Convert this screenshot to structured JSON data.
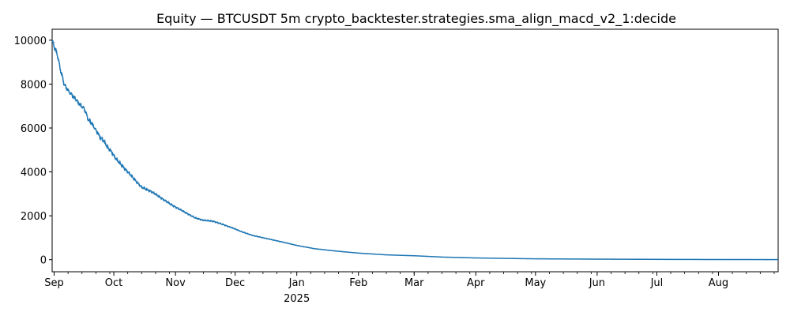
{
  "chart_data": {
    "type": "line",
    "title": "Equity — BTCUSDT 5m crypto_backtester.strategies.sma_align_macd_v2_1:decide",
    "xlabel": "",
    "ylabel": "",
    "x_range": [
      "2024-08-31",
      "2025-08-31"
    ],
    "ylim": [
      -550,
      10500
    ],
    "y_ticks": [
      0,
      2000,
      4000,
      6000,
      8000,
      10000
    ],
    "x_ticks": [
      {
        "date": "2024-09-01",
        "label": "Sep"
      },
      {
        "date": "2024-10-01",
        "label": "Oct"
      },
      {
        "date": "2024-11-01",
        "label": "Nov"
      },
      {
        "date": "2024-12-01",
        "label": "Dec"
      },
      {
        "date": "2025-01-01",
        "label": "Jan",
        "sublabel": "2025"
      },
      {
        "date": "2025-02-01",
        "label": "Feb"
      },
      {
        "date": "2025-03-01",
        "label": "Mar"
      },
      {
        "date": "2025-04-01",
        "label": "Apr"
      },
      {
        "date": "2025-05-01",
        "label": "May"
      },
      {
        "date": "2025-06-01",
        "label": "Jun"
      },
      {
        "date": "2025-07-01",
        "label": "Jul"
      },
      {
        "date": "2025-08-01",
        "label": "Aug"
      }
    ],
    "grid": false,
    "legend": "none",
    "line_color": "#1f77b4",
    "series": [
      {
        "x": [
          "2024-08-31",
          "2024-09-01",
          "2024-09-02",
          "2024-09-03",
          "2024-09-04",
          "2024-09-05",
          "2024-09-06",
          "2024-09-08",
          "2024-09-10",
          "2024-09-12",
          "2024-09-14",
          "2024-09-16",
          "2024-09-17",
          "2024-09-18",
          "2024-09-20",
          "2024-09-22",
          "2024-09-24",
          "2024-09-26",
          "2024-09-28",
          "2024-09-30",
          "2024-10-02",
          "2024-10-05",
          "2024-10-08",
          "2024-10-11",
          "2024-10-15",
          "2024-10-20",
          "2024-10-25",
          "2024-10-30",
          "2024-11-03",
          "2024-11-07",
          "2024-11-11",
          "2024-11-15",
          "2024-11-20",
          "2024-11-25",
          "2024-12-01",
          "2024-12-05",
          "2024-12-10",
          "2024-12-15",
          "2024-12-20",
          "2024-12-25",
          "2025-01-01",
          "2025-01-10",
          "2025-01-20",
          "2025-02-01",
          "2025-02-15",
          "2025-03-01",
          "2025-03-15",
          "2025-04-01",
          "2025-04-15",
          "2025-05-01",
          "2025-06-01",
          "2025-07-01",
          "2025-08-01",
          "2025-08-31"
        ],
        "y": [
          10000,
          9700,
          9500,
          9200,
          8700,
          8400,
          8000,
          7700,
          7500,
          7300,
          7050,
          6900,
          6700,
          6400,
          6200,
          5900,
          5600,
          5400,
          5100,
          4900,
          4600,
          4300,
          4000,
          3700,
          3300,
          3100,
          2800,
          2500,
          2300,
          2100,
          1900,
          1800,
          1750,
          1600,
          1400,
          1250,
          1100,
          1000,
          900,
          800,
          650,
          500,
          400,
          300,
          220,
          180,
          120,
          80,
          60,
          40,
          25,
          15,
          8,
          5
        ]
      }
    ]
  }
}
